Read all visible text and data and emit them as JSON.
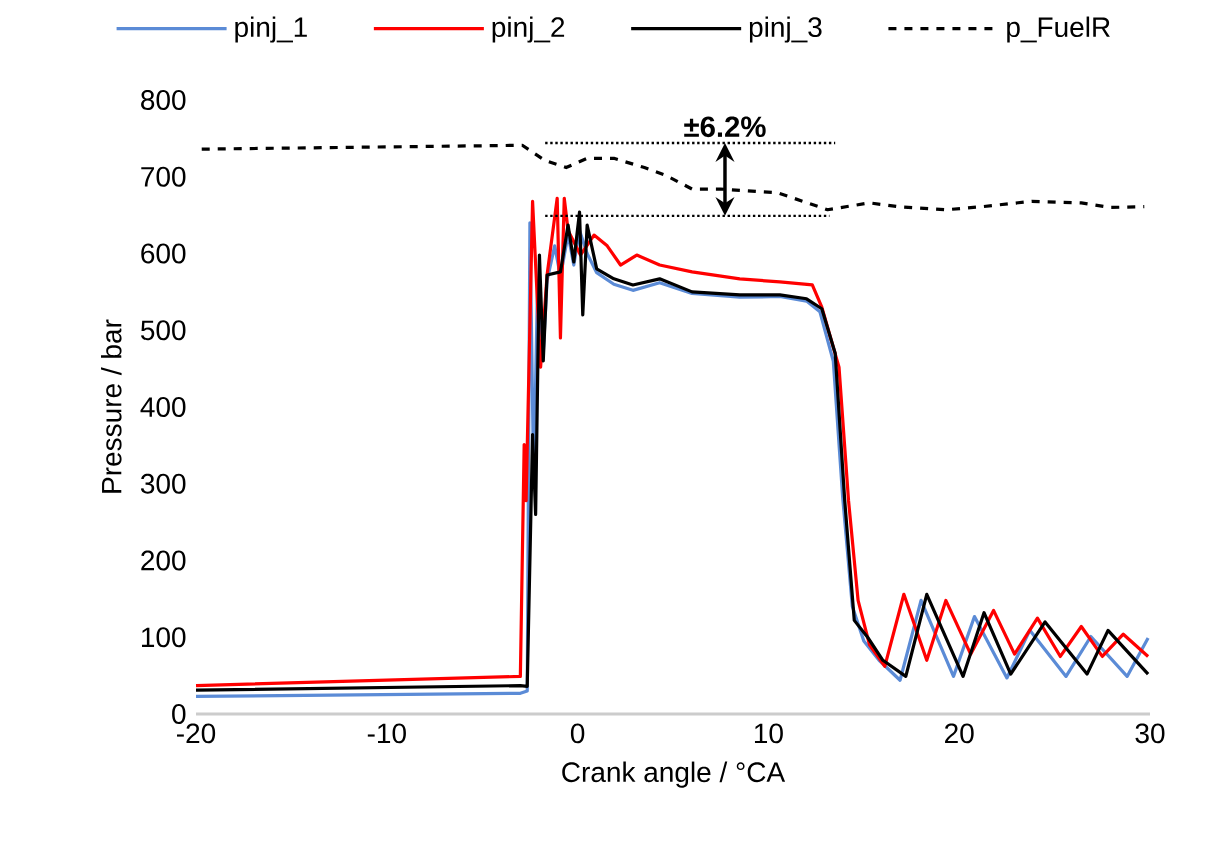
{
  "chart_data": {
    "type": "line",
    "xlabel": "Crank angle / °CA",
    "ylabel": "Pressure / bar",
    "xlim": [
      -20,
      30
    ],
    "ylim": [
      0,
      800
    ],
    "xticks": [
      -20,
      -10,
      0,
      10,
      20,
      30
    ],
    "yticks": [
      0,
      100,
      200,
      300,
      400,
      500,
      600,
      700,
      800
    ],
    "grid": false,
    "legend": "top",
    "annotations": [
      "±6.2%"
    ],
    "series": [
      {
        "name": "pinj_1",
        "color": "#5b8bd6",
        "line_style": "solid",
        "x": [
          -20,
          -3.0,
          -2.64,
          -2.5,
          -2.3,
          -2.1,
          -1.8,
          -1.6,
          -1.2,
          -0.9,
          -0.5,
          -0.2,
          0.1,
          0.5,
          1.0,
          1.9,
          2.9,
          4.3,
          6.0,
          8.5,
          10.6,
          12.0,
          12.7,
          13.4,
          13.9,
          14.4,
          15.0,
          15.8,
          16.9,
          18.0,
          19.7,
          20.8,
          22.5,
          23.7,
          25.6,
          26.9,
          28.8,
          29.9
        ],
        "values": [
          23,
          27,
          30,
          640,
          300,
          560,
          470,
          565,
          610,
          570,
          625,
          585,
          630,
          600,
          575,
          560,
          552,
          562,
          548,
          543,
          544,
          538,
          524,
          460,
          280,
          140,
          95,
          70,
          44,
          148,
          49,
          127,
          47,
          109,
          49,
          101,
          49,
          99
        ]
      },
      {
        "name": "pinj_2",
        "color": "#ff0000",
        "line_style": "solid",
        "x": [
          -20,
          -3.0,
          -2.8,
          -2.7,
          -2.36,
          -1.94,
          -1.6,
          -1.07,
          -0.9,
          -0.7,
          -0.5,
          0.15,
          0.86,
          1.55,
          2.25,
          3.1,
          4.3,
          6.0,
          8.5,
          10.6,
          12.3,
          12.8,
          13.7,
          14.2,
          14.7,
          15.3,
          16.1,
          17.1,
          18.3,
          19.3,
          20.6,
          21.8,
          22.9,
          24.1,
          25.3,
          26.4,
          27.5,
          28.6,
          29.9
        ],
        "values": [
          37,
          49,
          351,
          278,
          668,
          452,
          572,
          672,
          490,
          672,
          630,
          598,
          624,
          610,
          585,
          598,
          585,
          576,
          567,
          563,
          559,
          530,
          452,
          278,
          148,
          90,
          62,
          156,
          70,
          148,
          78,
          135,
          78,
          125,
          75,
          114,
          75,
          104,
          75
        ]
      },
      {
        "name": "pinj_3",
        "color": "#000000",
        "line_style": "solid",
        "x": [
          -20,
          -3.0,
          -2.64,
          -2.36,
          -2.2,
          -2.0,
          -1.8,
          -1.6,
          -0.9,
          -0.5,
          -0.2,
          0.1,
          0.27,
          0.5,
          1.0,
          1.9,
          2.9,
          4.3,
          6.0,
          8.5,
          10.6,
          12.0,
          12.8,
          13.5,
          14.0,
          14.5,
          15.2,
          16.0,
          17.2,
          18.3,
          20.2,
          21.3,
          22.7,
          24.5,
          26.7,
          27.8,
          29.9
        ],
        "values": [
          31,
          37,
          36,
          364,
          260,
          598,
          460,
          572,
          576,
          637,
          589,
          654,
          520,
          637,
          580,
          567,
          559,
          567,
          550,
          546,
          546,
          541,
          528,
          470,
          278,
          122,
          100,
          70,
          49,
          156,
          49,
          132,
          52,
          120,
          52,
          109,
          52
        ]
      },
      {
        "name": "p_FuelR",
        "color": "#000000",
        "line_style": "dashed",
        "x": [
          -19.7,
          -2.9,
          -1.7,
          -0.6,
          0.5,
          1.9,
          3.5,
          4.6,
          6.0,
          7.5,
          10.5,
          13.1,
          15.3,
          16.8,
          19.3,
          21.2,
          23.8,
          26.4,
          27.9,
          29.7
        ],
        "values": [
          736,
          741,
          721,
          712,
          724,
          724,
          712,
          702,
          684,
          684,
          679,
          657,
          666,
          661,
          657,
          661,
          668,
          666,
          660,
          661
        ]
      },
      {
        "color": "#000000",
        "line_style": "dotted",
        "x": [
          -1.7,
          13.5
        ],
        "values": [
          744,
          744
        ]
      },
      {
        "color": "#000000",
        "line_style": "dotted",
        "x": [
          -1.7,
          13.2
        ],
        "values": [
          649,
          649
        ]
      }
    ]
  }
}
